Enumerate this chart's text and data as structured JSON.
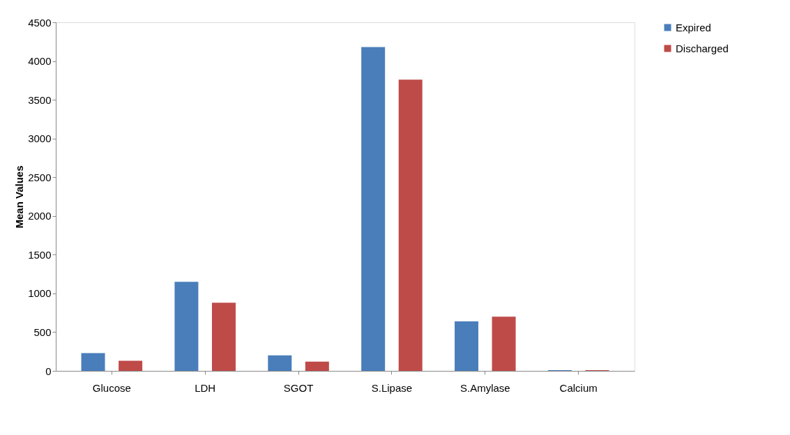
{
  "chart_data": {
    "type": "bar",
    "ylabel": "Mean Values",
    "categories": [
      "Glucose",
      "LDH",
      "SGOT",
      "S.Lipase",
      "S.Amylase",
      "Calcium"
    ],
    "series": [
      {
        "name": "Expired",
        "color": "#4a7ebb",
        "values": [
          230,
          1150,
          200,
          4180,
          640,
          10
        ]
      },
      {
        "name": "Discharged",
        "color": "#be4b48",
        "values": [
          130,
          880,
          120,
          3760,
          700,
          10
        ]
      }
    ],
    "ylim": [
      0,
      4500
    ],
    "yticks": [
      0,
      500,
      1000,
      1500,
      2000,
      2500,
      3000,
      3500,
      4000,
      4500
    ],
    "grid": false,
    "legend": "right"
  }
}
